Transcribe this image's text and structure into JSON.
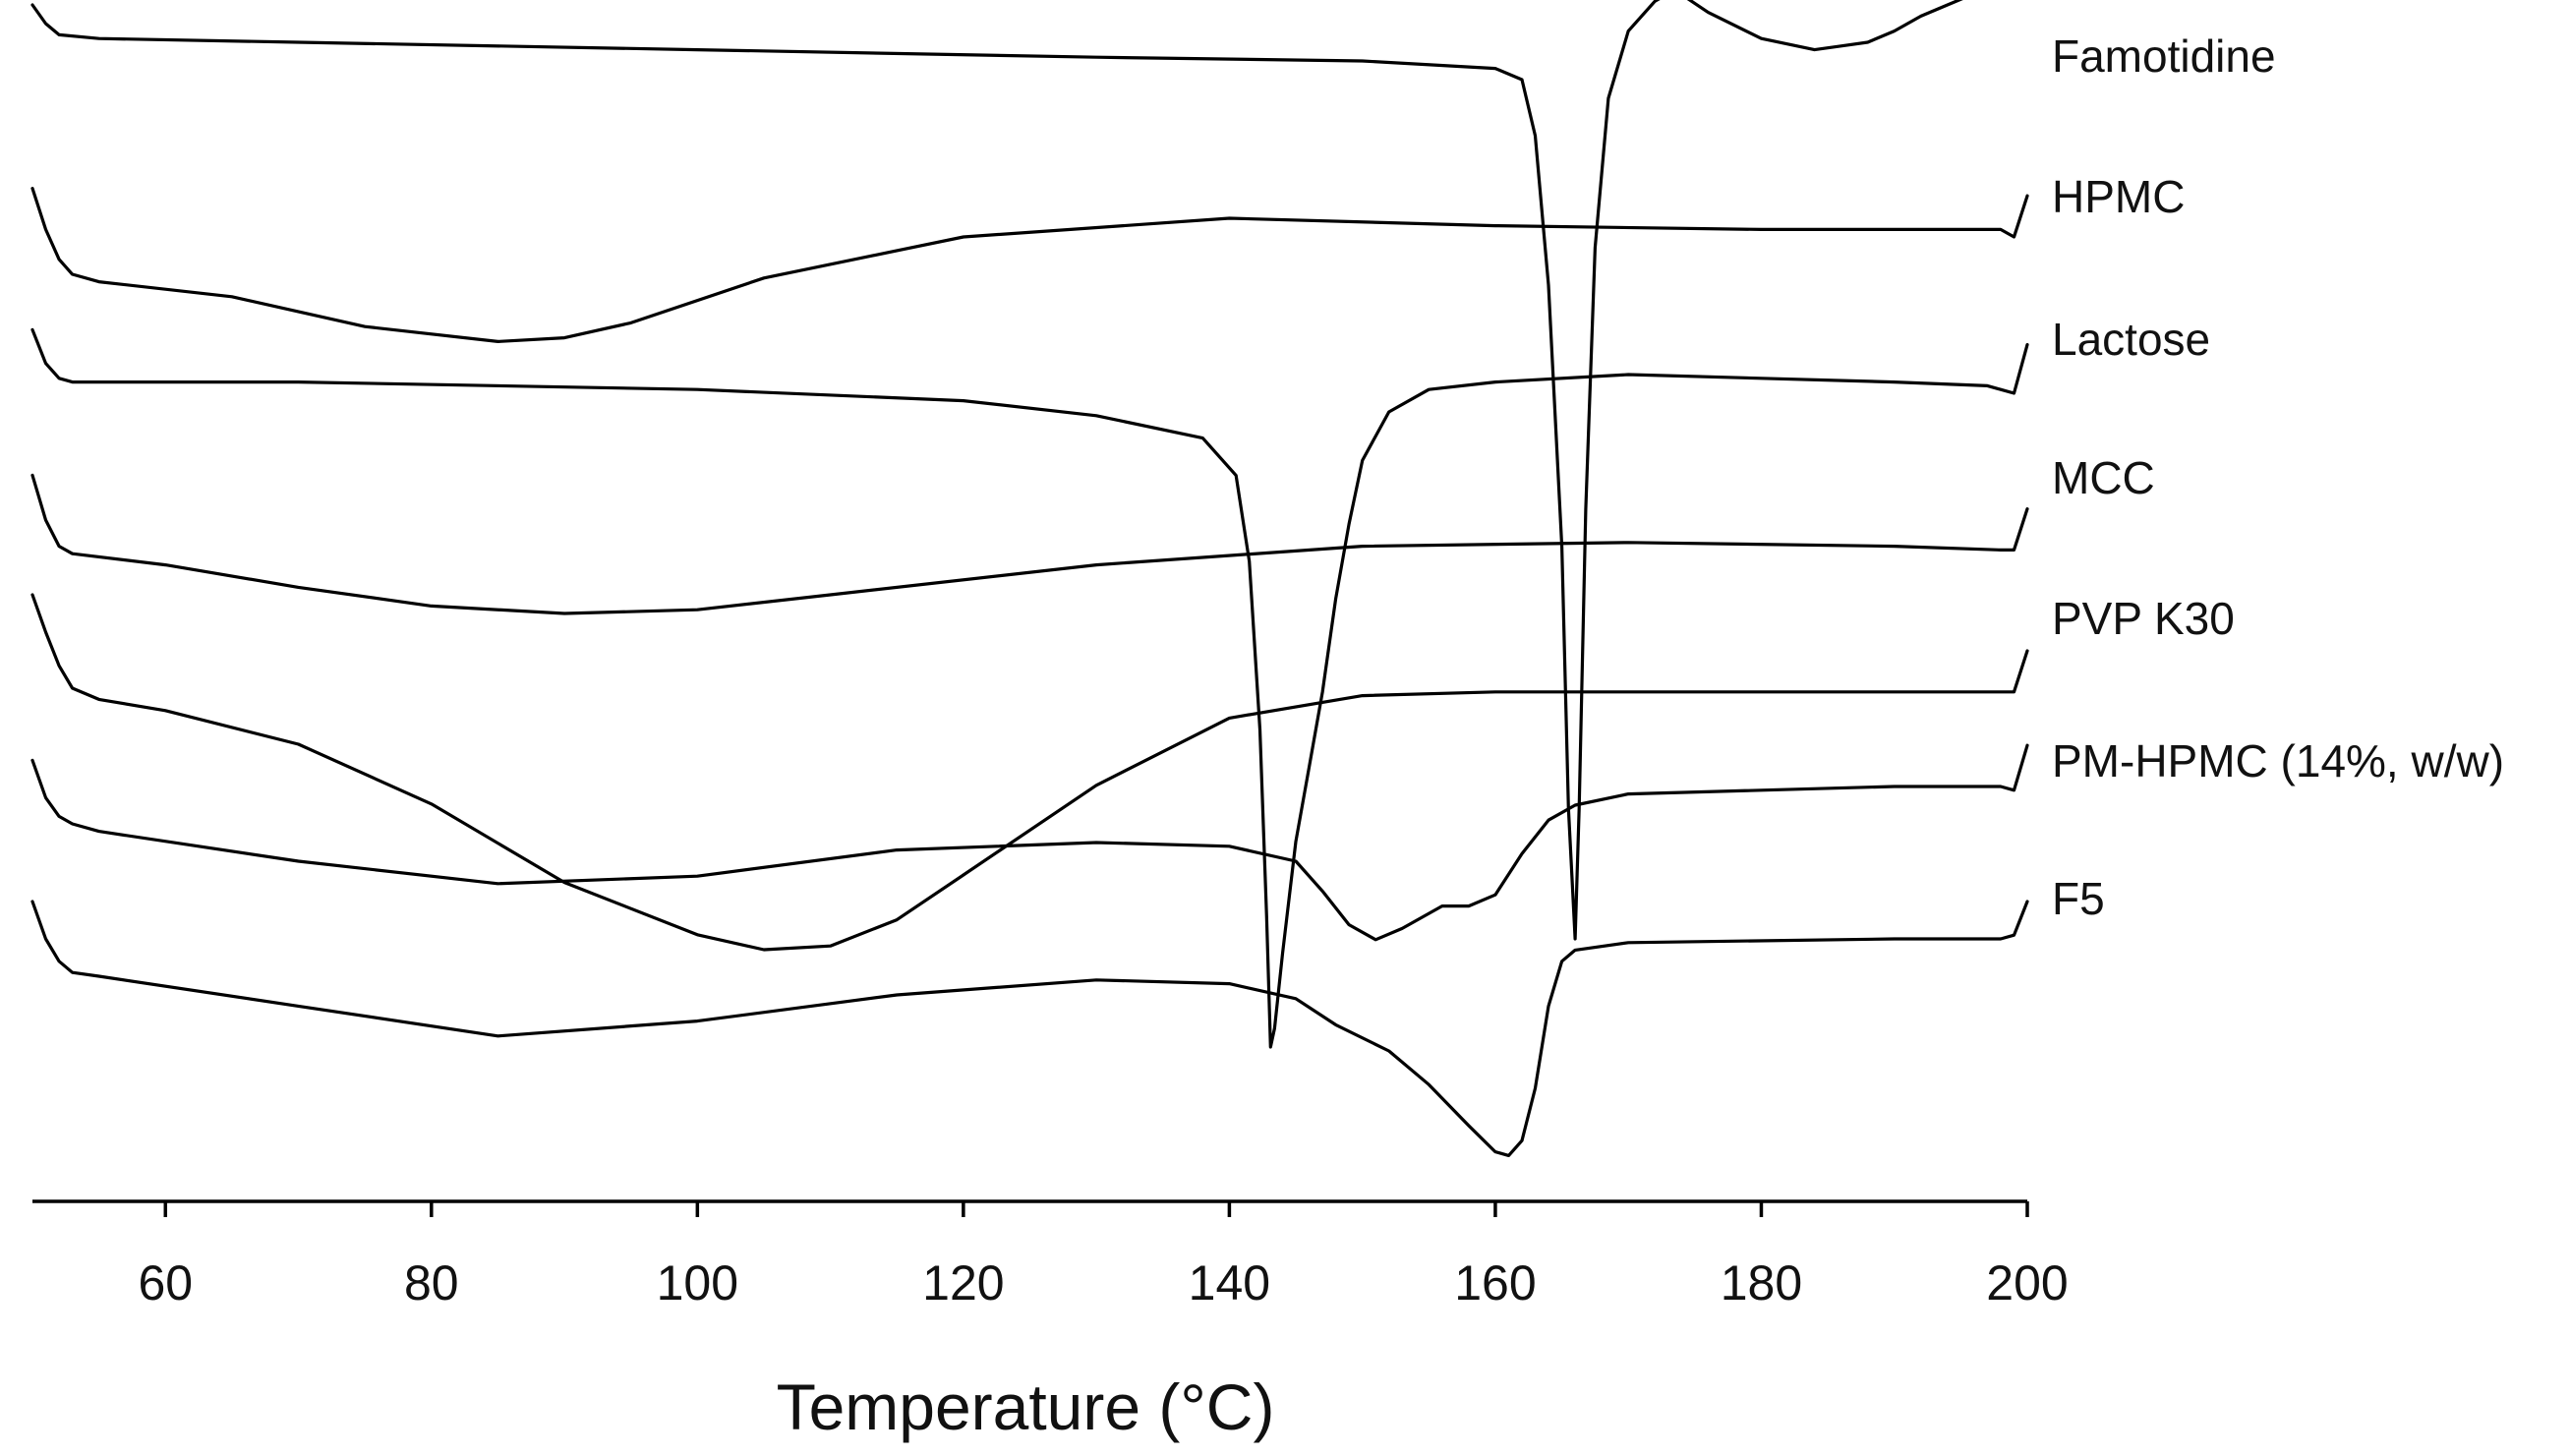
{
  "chart_data": {
    "type": "line",
    "title": "",
    "xlabel": "Temperature (°C)",
    "ylabel": "",
    "xlim": [
      50,
      200
    ],
    "xticks": [
      60,
      80,
      100,
      120,
      140,
      160,
      180,
      200
    ],
    "y_axis": "arbitrary heat flow (stacked, offset curves)",
    "grid": false,
    "color": "#000000",
    "series": [
      {
        "name": "Famotidine",
        "x": [
          50,
          51,
          52,
          55,
          70,
          100,
          130,
          150,
          160,
          162,
          163,
          164,
          165,
          165.5,
          166,
          166.3,
          166.8,
          167.5,
          168.5,
          170,
          172,
          173.5,
          176,
          180,
          184,
          186,
          188,
          190,
          192,
          194,
          196,
          198,
          199.5,
          200
        ],
        "y": [
          1.5,
          1.0,
          0.7,
          0.6,
          0.5,
          0.3,
          0.1,
          0.0,
          -0.2,
          -0.5,
          -2.0,
          -6.0,
          -13.0,
          -20.0,
          -23.5,
          -20.0,
          -12.0,
          -5.0,
          -1.0,
          0.8,
          1.6,
          1.9,
          1.3,
          0.6,
          0.3,
          0.4,
          0.5,
          0.8,
          1.2,
          1.5,
          1.8,
          2.0,
          2.2,
          2.5
        ]
      },
      {
        "name": "HPMC",
        "x": [
          50,
          51,
          52,
          53,
          55,
          65,
          75,
          85,
          90,
          95,
          105,
          120,
          140,
          160,
          180,
          195,
          198,
          199,
          200
        ],
        "y": [
          0.8,
          -0.3,
          -1.1,
          -1.5,
          -1.7,
          -2.1,
          -2.9,
          -3.3,
          -3.2,
          -2.8,
          -1.6,
          -0.5,
          0.0,
          -0.2,
          -0.3,
          -0.3,
          -0.3,
          -0.5,
          0.6
        ]
      },
      {
        "name": "Lactose",
        "x": [
          50,
          51,
          52,
          53,
          70,
          100,
          120,
          130,
          138,
          140.5,
          141.5,
          142.3,
          142.8,
          143.1,
          143.4,
          144,
          145,
          146,
          147,
          148,
          149,
          150,
          152,
          155,
          160,
          170,
          180,
          190,
          197,
          198,
          199,
          200
        ],
        "y": [
          0.7,
          -0.2,
          -0.6,
          -0.7,
          -0.7,
          -0.9,
          -1.2,
          -1.6,
          -2.2,
          -3.2,
          -5.5,
          -10.0,
          -15.0,
          -18.5,
          -18.0,
          -16.0,
          -13.0,
          -11.0,
          -9.0,
          -6.5,
          -4.5,
          -2.8,
          -1.5,
          -0.9,
          -0.7,
          -0.5,
          -0.6,
          -0.7,
          -0.8,
          -0.9,
          -1.0,
          0.3
        ]
      },
      {
        "name": "MCC",
        "x": [
          50,
          51,
          52,
          53,
          60,
          70,
          80,
          90,
          100,
          110,
          130,
          150,
          170,
          190,
          198,
          199,
          200
        ],
        "y": [
          0.7,
          -0.5,
          -1.2,
          -1.4,
          -1.7,
          -2.3,
          -2.8,
          -3.0,
          -2.9,
          -2.5,
          -1.7,
          -1.2,
          -1.1,
          -1.2,
          -1.3,
          -1.3,
          -0.2
        ]
      },
      {
        "name": "PVP K30",
        "x": [
          50,
          51,
          52,
          53,
          55,
          60,
          70,
          80,
          90,
          100,
          105,
          110,
          115,
          120,
          130,
          140,
          150,
          160,
          180,
          198,
          199,
          200
        ],
        "y": [
          1.5,
          0.5,
          -0.4,
          -1.0,
          -1.3,
          -1.6,
          -2.5,
          -4.1,
          -6.2,
          -7.6,
          -8.0,
          -7.9,
          -7.2,
          -6.0,
          -3.6,
          -1.8,
          -1.2,
          -1.1,
          -1.1,
          -1.1,
          -1.1,
          0.0
        ]
      },
      {
        "name": "PM-HPMC (14%, w/w)",
        "x": [
          50,
          51,
          52,
          53,
          55,
          70,
          85,
          100,
          115,
          130,
          140,
          145,
          147,
          149,
          151,
          153,
          156,
          158,
          160,
          162,
          164,
          166,
          170,
          190,
          198,
          199,
          200
        ],
        "y": [
          0.7,
          -0.3,
          -0.8,
          -1.0,
          -1.2,
          -2.0,
          -2.6,
          -2.4,
          -1.7,
          -1.5,
          -1.6,
          -2.0,
          -2.8,
          -3.7,
          -4.1,
          -3.8,
          -3.2,
          -3.2,
          -2.9,
          -1.8,
          -0.9,
          -0.5,
          -0.2,
          0.0,
          0.0,
          -0.1,
          1.1
        ]
      },
      {
        "name": "F5",
        "x": [
          50,
          51,
          52,
          53,
          55,
          70,
          85,
          100,
          115,
          130,
          140,
          145,
          148,
          152,
          155,
          158,
          160,
          161,
          162,
          163,
          164,
          165,
          166,
          170,
          190,
          198,
          199,
          200
        ],
        "y": [
          1.0,
          0.0,
          -0.6,
          -0.9,
          -1.0,
          -1.8,
          -2.6,
          -2.2,
          -1.5,
          -1.1,
          -1.2,
          -1.6,
          -2.3,
          -3.0,
          -3.9,
          -5.0,
          -5.7,
          -5.8,
          -5.4,
          -4.0,
          -1.8,
          -0.6,
          -0.3,
          -0.1,
          0.0,
          0.0,
          0.1,
          1.0
        ]
      }
    ]
  }
}
